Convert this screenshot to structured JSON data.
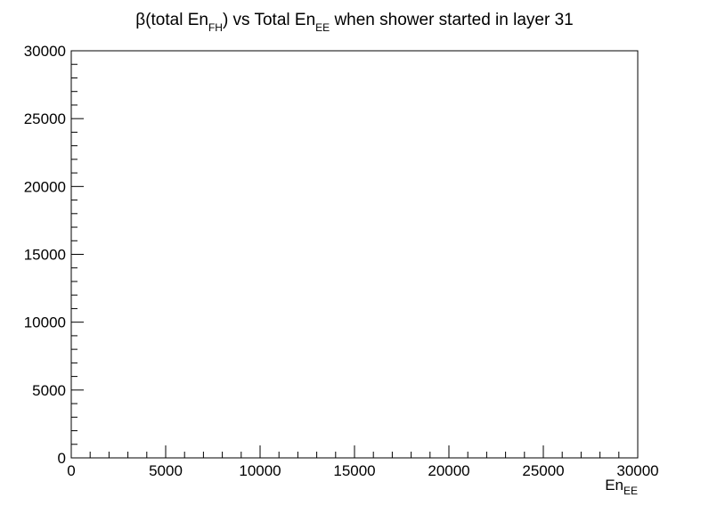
{
  "chart_data": {
    "type": "scatter",
    "title": {
      "prefix": "β(total En",
      "sub1": "FH",
      "middle": ") vs Total En",
      "sub2": "EE",
      "suffix": " when  shower started in layer 31"
    },
    "xlabel": {
      "base": "En",
      "sub": "EE"
    },
    "ylabel": "",
    "xlim": [
      0,
      30000
    ],
    "ylim": [
      0,
      30000
    ],
    "x_ticks": [
      0,
      5000,
      10000,
      15000,
      20000,
      25000,
      30000
    ],
    "y_ticks": [
      0,
      5000,
      10000,
      15000,
      20000,
      25000,
      30000
    ],
    "x_minor_step": 1000,
    "y_minor_step": 1000,
    "grid": false,
    "series": [
      {
        "x": [],
        "y": []
      }
    ]
  }
}
